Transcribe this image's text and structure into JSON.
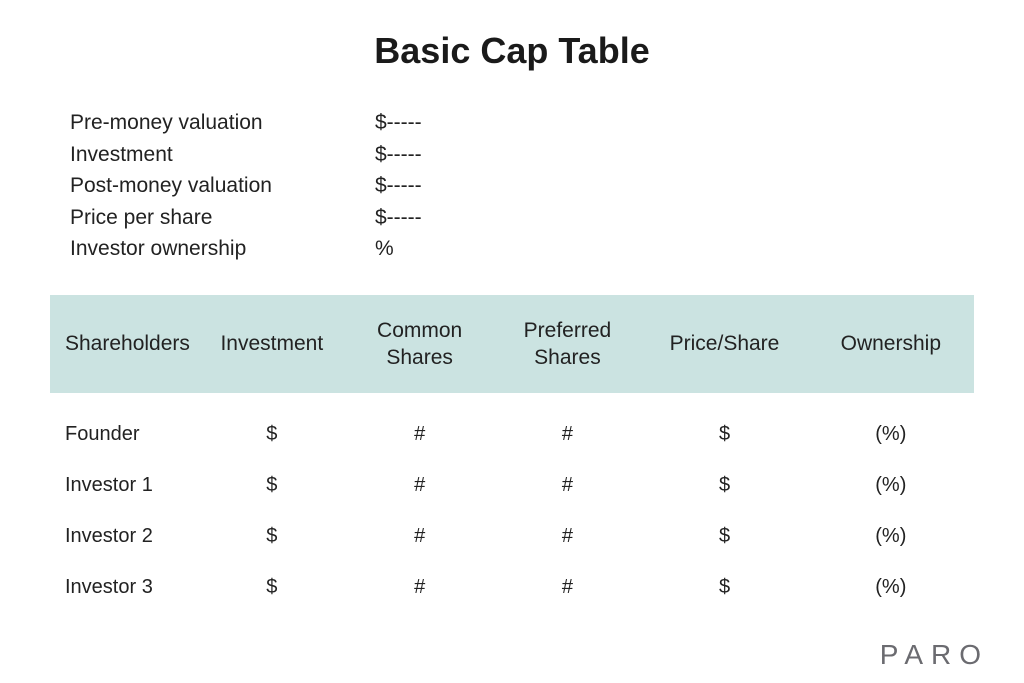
{
  "title": "Basic Cap Table",
  "summary": {
    "rows": [
      {
        "label": "Pre-money valuation",
        "value": "$-----"
      },
      {
        "label": "Investment",
        "value": "$-----"
      },
      {
        "label": "Post-money valuation",
        "value": "$-----"
      },
      {
        "label": "Price per share",
        "value": "$-----"
      },
      {
        "label": "Investor ownership",
        "value": "%"
      }
    ]
  },
  "table": {
    "type": "table",
    "header_background_color": "#cbe3e1",
    "text_color": "#222222",
    "font_size_header": 21,
    "font_size_cell": 20,
    "columns": [
      {
        "label": "Shareholders",
        "align": "left",
        "width_pct": 16
      },
      {
        "label": "Investment",
        "align": "center",
        "width_pct": 16
      },
      {
        "label": "Common\nShares",
        "align": "center",
        "width_pct": 16
      },
      {
        "label": "Preferred\nShares",
        "align": "center",
        "width_pct": 16
      },
      {
        "label": "Price/Share",
        "align": "center",
        "width_pct": 18
      },
      {
        "label": "Ownership",
        "align": "center",
        "width_pct": 18
      }
    ],
    "rows": [
      [
        "Founder",
        "$",
        "#",
        "#",
        "$",
        "(%)"
      ],
      [
        "Investor 1",
        "$",
        "#",
        "#",
        "$",
        "(%)"
      ],
      [
        "Investor 2",
        "$",
        "#",
        "#",
        "$",
        "(%)"
      ],
      [
        "Investor 3",
        "$",
        "#",
        "#",
        "$",
        "(%)"
      ]
    ]
  },
  "brand": "PARO",
  "colors": {
    "background": "#ffffff",
    "text": "#222222",
    "header_bg": "#cbe3e1",
    "brand_text": "#6b6b70"
  }
}
